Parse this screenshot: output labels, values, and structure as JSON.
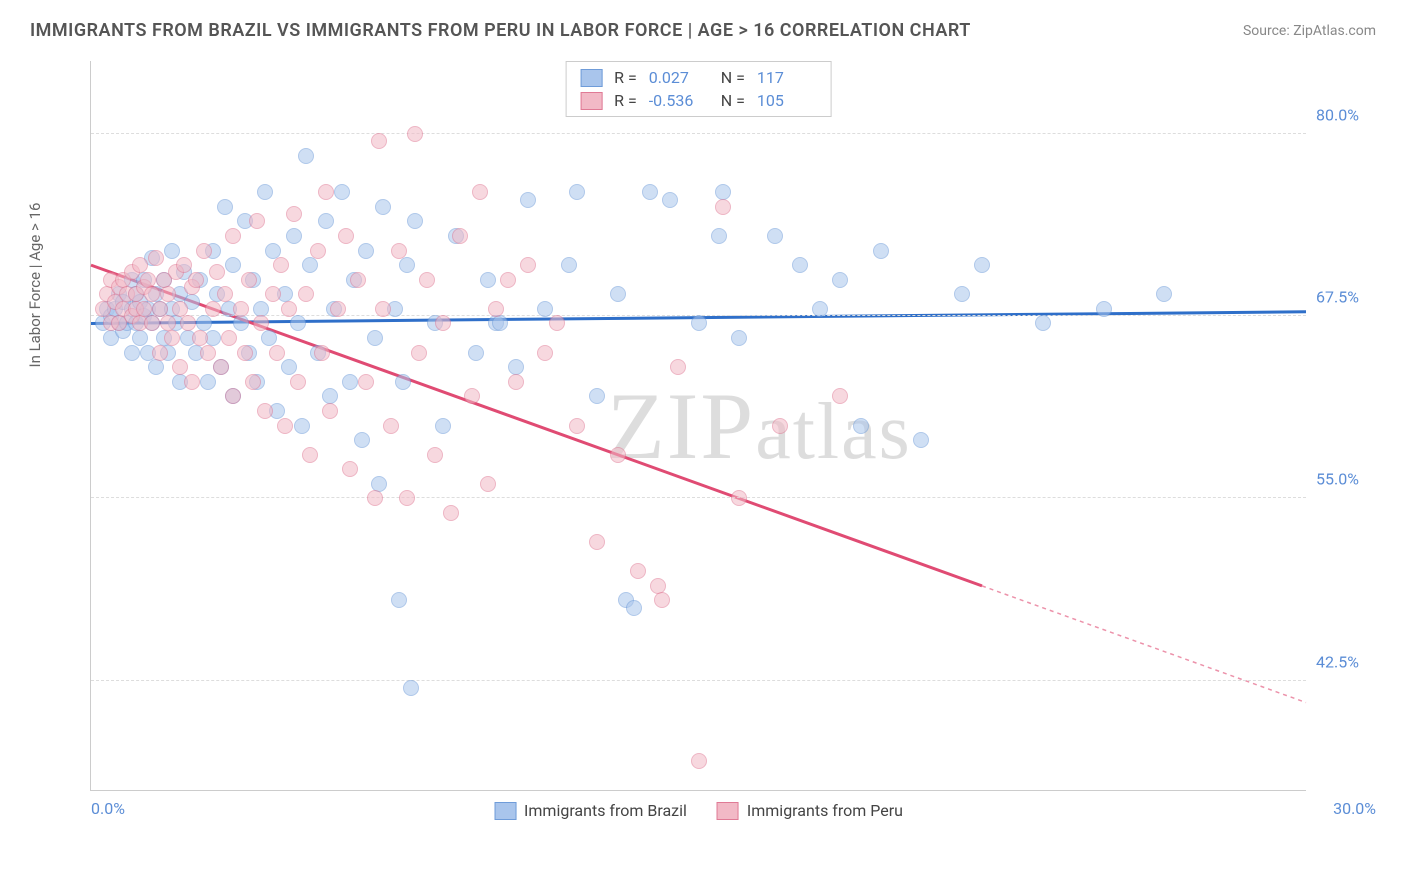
{
  "header": {
    "title": "IMMIGRANTS FROM BRAZIL VS IMMIGRANTS FROM PERU IN LABOR FORCE | AGE > 16 CORRELATION CHART",
    "source": "Source: ZipAtlas.com"
  },
  "chart": {
    "type": "scatter",
    "yaxis_title": "In Labor Force | Age > 16",
    "xlim": [
      0,
      30
    ],
    "ylim": [
      35,
      85
    ],
    "yticks": [
      {
        "value": 80.0,
        "label": "80.0%"
      },
      {
        "value": 67.5,
        "label": "67.5%"
      },
      {
        "value": 55.0,
        "label": "55.0%"
      },
      {
        "value": 42.5,
        "label": "42.5%"
      }
    ],
    "xticks": [
      {
        "value": 0,
        "label": "0.0%"
      },
      {
        "value": 30,
        "label": "30.0%"
      }
    ],
    "background_color": "#ffffff",
    "grid_color": "#dddddd",
    "axis_label_color": "#5b8dd6",
    "marker_radius": 8,
    "marker_opacity": 0.55,
    "marker_stroke_width": 1.5,
    "series": [
      {
        "name": "Immigrants from Brazil",
        "color_fill": "#a9c5ec",
        "color_stroke": "#6f9cd9",
        "trend_color": "#2f6fc9",
        "trend_width": 3,
        "R": "0.027",
        "N": "117",
        "trend": {
          "x1": 0,
          "y1": 67.0,
          "x2": 30,
          "y2": 67.8,
          "dashed_after_x": null
        },
        "points": [
          [
            0.3,
            67
          ],
          [
            0.4,
            68
          ],
          [
            0.5,
            67.5
          ],
          [
            0.5,
            66
          ],
          [
            0.6,
            68
          ],
          [
            0.7,
            67
          ],
          [
            0.7,
            69
          ],
          [
            0.8,
            66.5
          ],
          [
            0.8,
            68.5
          ],
          [
            0.9,
            67
          ],
          [
            1.0,
            68
          ],
          [
            1.0,
            70
          ],
          [
            1.0,
            65
          ],
          [
            1.1,
            67
          ],
          [
            1.1,
            69
          ],
          [
            1.2,
            68.5
          ],
          [
            1.2,
            66
          ],
          [
            1.3,
            67.5
          ],
          [
            1.3,
            70
          ],
          [
            1.4,
            68
          ],
          [
            1.4,
            65
          ],
          [
            1.5,
            71.5
          ],
          [
            1.5,
            67
          ],
          [
            1.6,
            69
          ],
          [
            1.6,
            64
          ],
          [
            1.7,
            68
          ],
          [
            1.8,
            66
          ],
          [
            1.8,
            70
          ],
          [
            1.9,
            65
          ],
          [
            2.0,
            68
          ],
          [
            2.0,
            72
          ],
          [
            2.1,
            67
          ],
          [
            2.2,
            69
          ],
          [
            2.2,
            63
          ],
          [
            2.3,
            70.5
          ],
          [
            2.4,
            66
          ],
          [
            2.5,
            68.5
          ],
          [
            2.6,
            65
          ],
          [
            2.7,
            70
          ],
          [
            2.8,
            67
          ],
          [
            2.9,
            63
          ],
          [
            3.0,
            72
          ],
          [
            3.0,
            66
          ],
          [
            3.1,
            69
          ],
          [
            3.2,
            64
          ],
          [
            3.3,
            75
          ],
          [
            3.4,
            68
          ],
          [
            3.5,
            71
          ],
          [
            3.5,
            62
          ],
          [
            3.7,
            67
          ],
          [
            3.8,
            74
          ],
          [
            3.9,
            65
          ],
          [
            4.0,
            70
          ],
          [
            4.1,
            63
          ],
          [
            4.2,
            68
          ],
          [
            4.3,
            76
          ],
          [
            4.4,
            66
          ],
          [
            4.5,
            72
          ],
          [
            4.6,
            61
          ],
          [
            4.8,
            69
          ],
          [
            4.9,
            64
          ],
          [
            5.0,
            73
          ],
          [
            5.1,
            67
          ],
          [
            5.2,
            60
          ],
          [
            5.3,
            78.5
          ],
          [
            5.4,
            71
          ],
          [
            5.6,
            65
          ],
          [
            5.8,
            74
          ],
          [
            5.9,
            62
          ],
          [
            6.0,
            68
          ],
          [
            6.2,
            76
          ],
          [
            6.4,
            63
          ],
          [
            6.5,
            70
          ],
          [
            6.7,
            59
          ],
          [
            6.8,
            72
          ],
          [
            7.0,
            66
          ],
          [
            7.1,
            56
          ],
          [
            7.2,
            75
          ],
          [
            7.5,
            68
          ],
          [
            7.6,
            48
          ],
          [
            7.7,
            63
          ],
          [
            7.8,
            71
          ],
          [
            7.9,
            42
          ],
          [
            8.0,
            74
          ],
          [
            8.5,
            67
          ],
          [
            8.7,
            60
          ],
          [
            9.0,
            73
          ],
          [
            9.5,
            65
          ],
          [
            9.8,
            70
          ],
          [
            10.0,
            67
          ],
          [
            10.1,
            67
          ],
          [
            10.5,
            64
          ],
          [
            10.8,
            75.5
          ],
          [
            11.2,
            68
          ],
          [
            11.8,
            71
          ],
          [
            12.0,
            76
          ],
          [
            12.5,
            62
          ],
          [
            13.0,
            69
          ],
          [
            13.2,
            48
          ],
          [
            13.4,
            47.5
          ],
          [
            13.8,
            76
          ],
          [
            14.3,
            75.5
          ],
          [
            15.0,
            67
          ],
          [
            15.5,
            73
          ],
          [
            15.6,
            76
          ],
          [
            16.0,
            66
          ],
          [
            16.9,
            73
          ],
          [
            17.5,
            71
          ],
          [
            18.0,
            68
          ],
          [
            18.5,
            70
          ],
          [
            19.0,
            60
          ],
          [
            19.5,
            72
          ],
          [
            20.5,
            59
          ],
          [
            21.5,
            69
          ],
          [
            22.0,
            71
          ],
          [
            23.5,
            67
          ],
          [
            25.0,
            68
          ],
          [
            26.5,
            69
          ]
        ]
      },
      {
        "name": "Immigrants from Peru",
        "color_fill": "#f2b9c6",
        "color_stroke": "#e07a95",
        "trend_color": "#e04b73",
        "trend_width": 3,
        "R": "-0.536",
        "N": "105",
        "trend": {
          "x1": 0,
          "y1": 71.0,
          "x2": 30,
          "y2": 41.0,
          "dashed_after_x": 22
        },
        "points": [
          [
            0.3,
            68
          ],
          [
            0.4,
            69
          ],
          [
            0.5,
            67
          ],
          [
            0.5,
            70
          ],
          [
            0.6,
            68.5
          ],
          [
            0.7,
            69.5
          ],
          [
            0.7,
            67
          ],
          [
            0.8,
            70
          ],
          [
            0.8,
            68
          ],
          [
            0.9,
            69
          ],
          [
            1.0,
            70.5
          ],
          [
            1.0,
            67.5
          ],
          [
            1.1,
            69
          ],
          [
            1.1,
            68
          ],
          [
            1.2,
            71
          ],
          [
            1.2,
            67
          ],
          [
            1.3,
            69.5
          ],
          [
            1.3,
            68
          ],
          [
            1.4,
            70
          ],
          [
            1.5,
            67
          ],
          [
            1.5,
            69
          ],
          [
            1.6,
            71.5
          ],
          [
            1.7,
            68
          ],
          [
            1.7,
            65
          ],
          [
            1.8,
            70
          ],
          [
            1.9,
            67
          ],
          [
            1.9,
            69
          ],
          [
            2.0,
            66
          ],
          [
            2.1,
            70.5
          ],
          [
            2.2,
            68
          ],
          [
            2.2,
            64
          ],
          [
            2.3,
            71
          ],
          [
            2.4,
            67
          ],
          [
            2.5,
            69.5
          ],
          [
            2.5,
            63
          ],
          [
            2.6,
            70
          ],
          [
            2.7,
            66
          ],
          [
            2.8,
            72
          ],
          [
            2.9,
            65
          ],
          [
            3.0,
            68
          ],
          [
            3.1,
            70.5
          ],
          [
            3.2,
            64
          ],
          [
            3.3,
            69
          ],
          [
            3.4,
            66
          ],
          [
            3.5,
            73
          ],
          [
            3.5,
            62
          ],
          [
            3.7,
            68
          ],
          [
            3.8,
            65
          ],
          [
            3.9,
            70
          ],
          [
            4.0,
            63
          ],
          [
            4.1,
            74
          ],
          [
            4.2,
            67
          ],
          [
            4.3,
            61
          ],
          [
            4.5,
            69
          ],
          [
            4.6,
            65
          ],
          [
            4.7,
            71
          ],
          [
            4.8,
            60
          ],
          [
            4.9,
            68
          ],
          [
            5.0,
            74.5
          ],
          [
            5.1,
            63
          ],
          [
            5.3,
            69
          ],
          [
            5.4,
            58
          ],
          [
            5.6,
            72
          ],
          [
            5.7,
            65
          ],
          [
            5.8,
            76
          ],
          [
            5.9,
            61
          ],
          [
            6.1,
            68
          ],
          [
            6.3,
            73
          ],
          [
            6.4,
            57
          ],
          [
            6.6,
            70
          ],
          [
            6.8,
            63
          ],
          [
            7.0,
            55
          ],
          [
            7.1,
            79.5
          ],
          [
            7.2,
            68
          ],
          [
            7.4,
            60
          ],
          [
            7.6,
            72
          ],
          [
            7.8,
            55
          ],
          [
            8.0,
            80
          ],
          [
            8.1,
            65
          ],
          [
            8.3,
            70
          ],
          [
            8.5,
            58
          ],
          [
            8.7,
            67
          ],
          [
            8.9,
            54
          ],
          [
            9.1,
            73
          ],
          [
            9.4,
            62
          ],
          [
            9.6,
            76
          ],
          [
            9.8,
            56
          ],
          [
            10.0,
            68
          ],
          [
            10.3,
            70
          ],
          [
            10.5,
            63
          ],
          [
            10.8,
            71
          ],
          [
            11.2,
            65
          ],
          [
            11.5,
            67
          ],
          [
            12.0,
            60
          ],
          [
            12.5,
            52
          ],
          [
            13.0,
            58
          ],
          [
            13.5,
            50
          ],
          [
            14.0,
            49
          ],
          [
            14.1,
            48
          ],
          [
            14.5,
            64
          ],
          [
            15.0,
            37
          ],
          [
            15.6,
            75
          ],
          [
            16.0,
            55
          ],
          [
            17.0,
            60
          ],
          [
            18.5,
            62
          ]
        ]
      }
    ],
    "legend_bottom": [
      {
        "label": "Immigrants from Brazil",
        "fill": "#a9c5ec",
        "stroke": "#6f9cd9"
      },
      {
        "label": "Immigrants from Peru",
        "fill": "#f2b9c6",
        "stroke": "#e07a95"
      }
    ],
    "watermark": "ZIPatlas"
  }
}
